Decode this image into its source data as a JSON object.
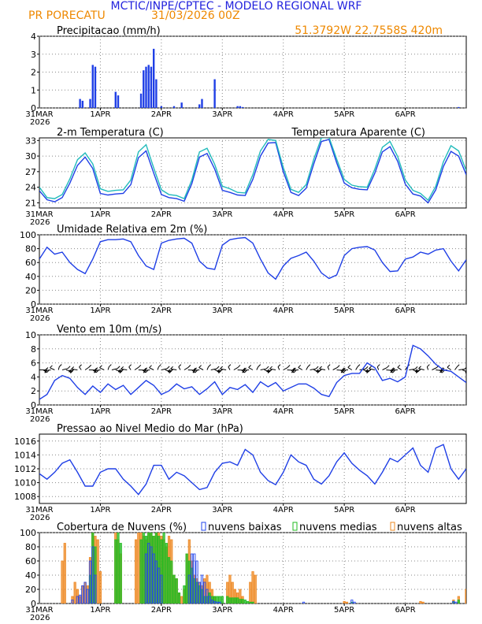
{
  "header": {
    "title": "MCTIC/INPE/CPTEC - MODELO REGIONAL WRF",
    "station": "PR PORECATU",
    "run": "31/03/2026 00Z",
    "coords": "51.3792W 22.7558S 420m"
  },
  "colors": {
    "title": "#2222dd",
    "station": "#ee8800",
    "coords": "#ee8800",
    "series_blue": "#1f3fe6",
    "series_cyan": "#22bbbb",
    "nuvens_baixas": "#2244ee",
    "nuvens_medias": "#22bb22",
    "nuvens_altas": "#ee8822"
  },
  "x_axis": {
    "start_label": [
      "31MAR",
      "2026"
    ],
    "ticks": [
      "1APR",
      "2APR",
      "3APR",
      "4APR",
      "5APR",
      "6APR"
    ],
    "hours_total": 168
  },
  "chart_data": [
    {
      "type": "bar",
      "title": "Precipitacao (mm/h)",
      "ylim": [
        0,
        4
      ],
      "yticks": [
        0,
        1,
        2,
        3,
        4
      ],
      "x_unit": "hours since 31/03/2026 00Z",
      "x": [
        16,
        17,
        20,
        21,
        22,
        30,
        31,
        40,
        41,
        42,
        43,
        44,
        45,
        46,
        48,
        53,
        56,
        63,
        64,
        69,
        78,
        79,
        80,
        165
      ],
      "values": [
        0.5,
        0.4,
        0.5,
        2.4,
        2.3,
        0.9,
        0.7,
        0.8,
        2.1,
        2.3,
        2.4,
        2.3,
        3.3,
        1.6,
        0.1,
        0.1,
        0.3,
        0.2,
        0.5,
        1.6,
        0.1,
        0.1,
        0.05,
        0.05
      ]
    },
    {
      "type": "line",
      "title": "2-m Temperatura (C)",
      "ylim": [
        20,
        33.5
      ],
      "yticks": [
        21,
        24,
        27,
        30,
        33
      ],
      "series": [
        {
          "name": "2-m Temperatura (C)",
          "x": [
            0,
            3,
            6,
            9,
            12,
            15,
            18,
            21,
            24,
            27,
            30,
            33,
            36,
            39,
            42,
            45,
            48,
            51,
            54,
            57,
            60,
            63,
            66,
            69,
            72,
            75,
            78,
            81,
            84,
            87,
            90,
            93,
            96,
            99,
            102,
            105,
            108,
            111,
            114,
            117,
            120,
            123,
            126,
            129,
            132,
            135,
            138,
            141,
            144,
            147,
            150,
            153,
            156,
            159,
            162,
            165,
            168
          ],
          "values": [
            23.3,
            21.6,
            21.2,
            22.0,
            24.8,
            28.2,
            29.8,
            27.6,
            22.8,
            22.5,
            22.7,
            22.8,
            24.5,
            29.7,
            31.0,
            26.7,
            22.6,
            22.0,
            21.8,
            21.3,
            24.7,
            29.8,
            30.5,
            27.5,
            23.4,
            23.0,
            22.5,
            22.4,
            25.5,
            30.0,
            32.5,
            32.6,
            27.0,
            23.0,
            22.4,
            23.8,
            28.5,
            32.8,
            33.2,
            28.7,
            24.8,
            23.9,
            23.6,
            23.5,
            26.7,
            30.8,
            31.8,
            29.0,
            24.6,
            22.7,
            22.3,
            21.0,
            23.5,
            28.0,
            30.9,
            30.0,
            26.4
          ]
        },
        {
          "name": "Temperatura Aparente (C)",
          "x": [
            0,
            3,
            6,
            9,
            12,
            15,
            18,
            21,
            24,
            27,
            30,
            33,
            36,
            39,
            42,
            45,
            48,
            51,
            54,
            57,
            60,
            63,
            66,
            69,
            72,
            75,
            78,
            81,
            84,
            87,
            90,
            93,
            96,
            99,
            102,
            105,
            108,
            111,
            114,
            117,
            120,
            123,
            126,
            129,
            132,
            135,
            138,
            141,
            144,
            147,
            150,
            153,
            156,
            159,
            162,
            165,
            168
          ],
          "values": [
            24.0,
            22.0,
            21.8,
            22.6,
            25.6,
            29.3,
            30.6,
            28.5,
            23.7,
            23.2,
            23.4,
            23.5,
            25.4,
            30.8,
            32.2,
            27.7,
            23.5,
            22.6,
            22.4,
            21.8,
            25.4,
            30.8,
            31.5,
            28.4,
            24.2,
            23.7,
            23.0,
            22.9,
            26.4,
            31.0,
            33.2,
            33.0,
            27.8,
            23.6,
            23.0,
            24.5,
            29.4,
            33.5,
            33.6,
            29.4,
            25.5,
            24.4,
            24.1,
            24.0,
            27.5,
            31.7,
            32.8,
            29.9,
            25.4,
            23.4,
            22.8,
            21.5,
            24.2,
            28.9,
            32.0,
            31.0,
            27.2
          ]
        }
      ]
    },
    {
      "type": "line",
      "title": "Umidade Relativa em 2m (%)",
      "ylim": [
        0,
        100
      ],
      "yticks": [
        0,
        20,
        40,
        60,
        80,
        100
      ],
      "series": [
        {
          "name": "Umidade Relativa em 2m (%)",
          "x": [
            0,
            3,
            6,
            9,
            12,
            15,
            18,
            21,
            24,
            27,
            30,
            33,
            36,
            39,
            42,
            45,
            48,
            51,
            54,
            57,
            60,
            63,
            66,
            69,
            72,
            75,
            78,
            81,
            84,
            87,
            90,
            93,
            96,
            99,
            102,
            105,
            108,
            111,
            114,
            117,
            120,
            123,
            126,
            129,
            132,
            135,
            138,
            141,
            144,
            147,
            150,
            153,
            156,
            159,
            162,
            165,
            168
          ],
          "values": [
            65,
            82,
            72,
            75,
            60,
            50,
            44,
            65,
            90,
            93,
            93,
            94,
            90,
            70,
            55,
            50,
            88,
            92,
            94,
            95,
            88,
            62,
            52,
            50,
            85,
            93,
            95,
            96,
            88,
            65,
            45,
            36,
            55,
            66,
            70,
            75,
            62,
            45,
            37,
            42,
            70,
            80,
            82,
            83,
            78,
            60,
            47,
            48,
            65,
            68,
            75,
            72,
            78,
            80,
            62,
            48,
            64
          ]
        }
      ]
    },
    {
      "type": "line",
      "title": "Vento em 10m (m/s)",
      "ylim": [
        0,
        10
      ],
      "yticks": [
        0,
        2,
        4,
        6,
        8,
        10
      ],
      "note": "includes wind barbs along the 5 m/s line",
      "series": [
        {
          "name": "Vento em 10m (m/s)",
          "x": [
            0,
            3,
            6,
            9,
            12,
            15,
            18,
            21,
            24,
            27,
            30,
            33,
            36,
            39,
            42,
            45,
            48,
            51,
            54,
            57,
            60,
            63,
            66,
            69,
            72,
            75,
            78,
            81,
            84,
            87,
            90,
            93,
            96,
            99,
            102,
            105,
            108,
            111,
            114,
            117,
            120,
            123,
            126,
            129,
            132,
            135,
            138,
            141,
            144,
            147,
            150,
            153,
            156,
            159,
            162,
            165,
            168
          ],
          "values": [
            0.8,
            1.5,
            3.5,
            4.2,
            3.8,
            2.5,
            1.5,
            2.7,
            1.8,
            3.0,
            2.2,
            2.8,
            1.5,
            2.5,
            3.5,
            2.8,
            1.5,
            2.0,
            3.0,
            2.3,
            2.6,
            1.5,
            2.3,
            3.3,
            1.5,
            2.5,
            2.2,
            2.9,
            1.8,
            3.3,
            2.6,
            3.2,
            2.0,
            2.5,
            3.0,
            3.0,
            2.4,
            1.5,
            1.2,
            3.2,
            4.2,
            4.5,
            4.5,
            6.0,
            5.3,
            3.5,
            3.8,
            3.3,
            4.0,
            8.5,
            8.0,
            7.0,
            5.8,
            5.0,
            4.8,
            4.0,
            3.2
          ]
        }
      ]
    },
    {
      "type": "line",
      "title": "Pressao ao Nivel Medio do Mar (hPa)",
      "ylim": [
        1007,
        1017
      ],
      "yticks": [
        1008,
        1010,
        1012,
        1014,
        1016
      ],
      "series": [
        {
          "name": "Pressao ao Nivel Medio do Mar (hPa)",
          "x": [
            0,
            3,
            6,
            9,
            12,
            15,
            18,
            21,
            24,
            27,
            30,
            33,
            36,
            39,
            42,
            45,
            48,
            51,
            54,
            57,
            60,
            63,
            66,
            69,
            72,
            75,
            78,
            81,
            84,
            87,
            90,
            93,
            96,
            99,
            102,
            105,
            108,
            111,
            114,
            117,
            120,
            123,
            126,
            129,
            132,
            135,
            138,
            141,
            144,
            147,
            150,
            153,
            156,
            159,
            162,
            165,
            168
          ],
          "values": [
            1011.3,
            1010.5,
            1011.5,
            1012.8,
            1013.3,
            1011.5,
            1009.5,
            1009.5,
            1011.5,
            1012.0,
            1012.0,
            1010.5,
            1009.5,
            1008.3,
            1009.8,
            1012.5,
            1012.5,
            1010.5,
            1011.5,
            1011.0,
            1010.0,
            1009.0,
            1009.3,
            1011.5,
            1012.8,
            1013.0,
            1012.5,
            1014.8,
            1014.0,
            1011.5,
            1010.3,
            1009.7,
            1011.5,
            1014.0,
            1013.0,
            1012.5,
            1010.5,
            1009.8,
            1011.0,
            1013.0,
            1014.3,
            1012.8,
            1011.8,
            1011.0,
            1009.8,
            1011.5,
            1013.5,
            1013.0,
            1014.0,
            1015.0,
            1012.5,
            1011.5,
            1015.0,
            1015.5,
            1012.0,
            1010.5,
            1012.0
          ]
        }
      ]
    },
    {
      "type": "bar",
      "title": "Cobertura de Nuvens (%)",
      "ylim": [
        0,
        100
      ],
      "yticks": [
        0,
        20,
        40,
        60,
        80,
        100
      ],
      "legend": [
        "nuvens baixas",
        "nuvens medias",
        "nuvens altas"
      ],
      "series": [
        {
          "name": "nuvens baixas",
          "x": [
            13,
            15,
            16,
            17,
            18,
            19,
            20,
            21,
            22,
            42,
            43,
            44,
            45,
            46,
            47,
            48,
            59,
            60,
            61,
            62,
            63,
            64,
            65,
            66,
            67,
            68,
            69,
            70,
            71,
            104,
            123,
            124,
            163,
            164
          ],
          "values": [
            5,
            10,
            12,
            25,
            30,
            20,
            60,
            80,
            40,
            70,
            85,
            80,
            70,
            60,
            50,
            40,
            40,
            70,
            70,
            60,
            30,
            40,
            30,
            20,
            10,
            5,
            3,
            2,
            2,
            2,
            5,
            2,
            3,
            2
          ]
        },
        {
          "name": "nuvens medias",
          "x": [
            20,
            21,
            22,
            30,
            31,
            32,
            40,
            41,
            42,
            43,
            44,
            45,
            46,
            47,
            48,
            49,
            50,
            51,
            52,
            53,
            54,
            55,
            57,
            58,
            59,
            60,
            61,
            62,
            63,
            64,
            65,
            66,
            67,
            68,
            69,
            70,
            71,
            72,
            74,
            75,
            76,
            77,
            78,
            79,
            80,
            81,
            82,
            83,
            84,
            123,
            163,
            165
          ],
          "values": [
            40,
            100,
            80,
            90,
            100,
            85,
            90,
            100,
            95,
            100,
            100,
            95,
            100,
            95,
            90,
            100,
            85,
            65,
            60,
            40,
            35,
            15,
            25,
            70,
            60,
            50,
            35,
            30,
            25,
            20,
            10,
            10,
            15,
            10,
            10,
            10,
            10,
            10,
            10,
            8,
            8,
            8,
            8,
            6,
            6,
            5,
            3,
            2,
            2,
            2,
            3,
            5
          ]
        },
        {
          "name": "nuvens altas",
          "x": [
            9,
            10,
            13,
            14,
            15,
            16,
            17,
            18,
            19,
            20,
            21,
            22,
            23,
            24,
            30,
            31,
            32,
            38,
            39,
            40,
            41,
            42,
            43,
            44,
            45,
            46,
            47,
            48,
            49,
            50,
            51,
            52,
            53,
            54,
            55,
            56,
            57,
            58,
            59,
            60,
            61,
            62,
            63,
            64,
            65,
            66,
            67,
            68,
            69,
            74,
            75,
            76,
            77,
            78,
            79,
            80,
            83,
            84,
            85,
            120,
            121,
            150,
            151,
            163,
            165,
            168
          ],
          "values": [
            60,
            85,
            10,
            30,
            20,
            10,
            25,
            30,
            25,
            65,
            100,
            95,
            90,
            45,
            100,
            90,
            70,
            90,
            100,
            100,
            95,
            90,
            100,
            100,
            95,
            100,
            100,
            95,
            90,
            80,
            95,
            90,
            40,
            35,
            15,
            10,
            20,
            70,
            90,
            60,
            40,
            35,
            30,
            25,
            35,
            40,
            30,
            20,
            10,
            30,
            40,
            30,
            20,
            15,
            20,
            10,
            30,
            45,
            40,
            3,
            2,
            3,
            2,
            5,
            10,
            20
          ]
        }
      ]
    }
  ]
}
